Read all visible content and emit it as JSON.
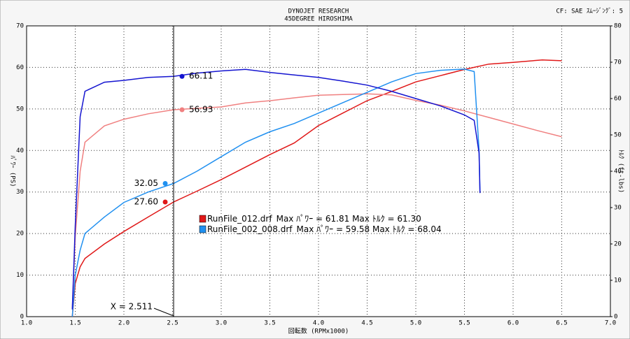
{
  "chart_data": {
    "type": "line",
    "title": "DYNOJET  RESEARCH",
    "subtitle": "45DEGREE HIROSHIMA",
    "corner_note": "CF: SAE  ｽﾑｰｼﾞﾝｸﾞ: 5",
    "x_label": "回転数 (RPMx1000)",
    "y_label": "ﾊﾟﾜｰ (PS)",
    "y2_label": "ﾄﾙｸ (ft-lbs)",
    "xlim": [
      1.0,
      7.0
    ],
    "xticks": [
      {
        "value": 1.0,
        "label": "1.0"
      },
      1.5,
      {
        "value": 2.0,
        "label": "2.0"
      },
      2.5,
      {
        "value": 3.0,
        "label": "3.0"
      },
      3.5,
      {
        "value": 4.0,
        "label": "4.0"
      },
      4.5,
      {
        "value": 5.0,
        "label": "5.0"
      },
      5.5,
      {
        "value": 6.0,
        "label": "6.0"
      },
      6.5,
      {
        "value": 7.0,
        "label": "7.0"
      }
    ],
    "ylim": [
      0,
      70
    ],
    "yticks": [
      0,
      10,
      20,
      30,
      40,
      50,
      60,
      70
    ],
    "y2lim": [
      0,
      80
    ],
    "y2ticks": [
      0,
      10,
      20,
      30,
      40,
      50,
      60,
      70,
      80
    ],
    "grid": true,
    "series": [
      {
        "color": "#e01818",
        "axis": "y",
        "x": [
          1.47,
          1.5,
          1.55,
          1.6,
          1.8,
          2.0,
          2.25,
          2.511,
          2.75,
          3.0,
          3.25,
          3.5,
          3.75,
          4.0,
          4.25,
          4.5,
          4.75,
          5.0,
          5.25,
          5.5,
          5.75,
          6.0,
          6.3,
          6.5
        ],
        "values": [
          0,
          8,
          12,
          14,
          17.5,
          20.5,
          24,
          27.6,
          30.2,
          33,
          36,
          39,
          41.8,
          46,
          49,
          52,
          54.2,
          56.5,
          58,
          59.5,
          60.8,
          61.2,
          61.81,
          61.6
        ]
      },
      {
        "color": "#f08080",
        "axis": "y2",
        "x": [
          1.47,
          1.5,
          1.55,
          1.6,
          1.8,
          2.0,
          2.25,
          2.511,
          2.75,
          3.0,
          3.25,
          3.5,
          3.75,
          4.0,
          4.25,
          4.5,
          4.75,
          5.0,
          5.25,
          5.5,
          5.75,
          6.0,
          6.25,
          6.5
        ],
        "values": [
          2,
          22,
          40,
          48,
          52.5,
          54.3,
          55.8,
          56.93,
          57.3,
          57.7,
          58.8,
          59.4,
          60.2,
          60.9,
          61.1,
          61.3,
          61.0,
          59.5,
          58.2,
          56.6,
          54.8,
          53.0,
          51.2,
          49.5
        ]
      },
      {
        "color": "#2090f0",
        "axis": "y",
        "x": [
          1.47,
          1.5,
          1.55,
          1.6,
          1.8,
          2.0,
          2.25,
          2.511,
          2.75,
          3.0,
          3.25,
          3.5,
          3.75,
          4.0,
          4.25,
          4.5,
          4.75,
          5.0,
          5.25,
          5.5,
          5.6,
          5.65,
          5.66
        ],
        "values": [
          0,
          10,
          16,
          20,
          24,
          27.5,
          30,
          32.05,
          35,
          38.5,
          42,
          44.5,
          46.5,
          49,
          51.5,
          54,
          56.5,
          58.5,
          59.3,
          59.58,
          59,
          40,
          30
        ]
      },
      {
        "color": "#1414d0",
        "axis": "y2",
        "x": [
          1.47,
          1.5,
          1.55,
          1.6,
          1.8,
          2.0,
          2.25,
          2.511,
          2.75,
          3.0,
          3.25,
          3.5,
          3.75,
          4.0,
          4.25,
          4.5,
          4.75,
          5.0,
          5.25,
          5.5,
          5.6,
          5.65,
          5.66
        ],
        "values": [
          2,
          25,
          55,
          62,
          64.5,
          65,
          65.8,
          66.11,
          67,
          67.6,
          68.04,
          67.2,
          66.5,
          65.8,
          64.8,
          63.7,
          62,
          60,
          58,
          55.5,
          54,
          45,
          34
        ]
      }
    ],
    "cursor": {
      "x": 2.511,
      "label": "X = 2.511",
      "values": [
        27.6,
        56.93,
        32.05,
        66.11
      ],
      "value_labels": [
        "27.60",
        "56.93",
        "32.05",
        "66.11"
      ]
    },
    "legend": [
      {
        "file": "RunFile_012.drf",
        "text": "Max ﾊﾟﾜｰ = 61.81    Max ﾄﾙｸ = 61.30",
        "color": "#e01818"
      },
      {
        "file": "RunFile_002_008.drf",
        "text": "Max ﾊﾟﾜｰ = 59.58    Max ﾄﾙｸ = 68.04",
        "color": "#2090f0"
      }
    ]
  }
}
